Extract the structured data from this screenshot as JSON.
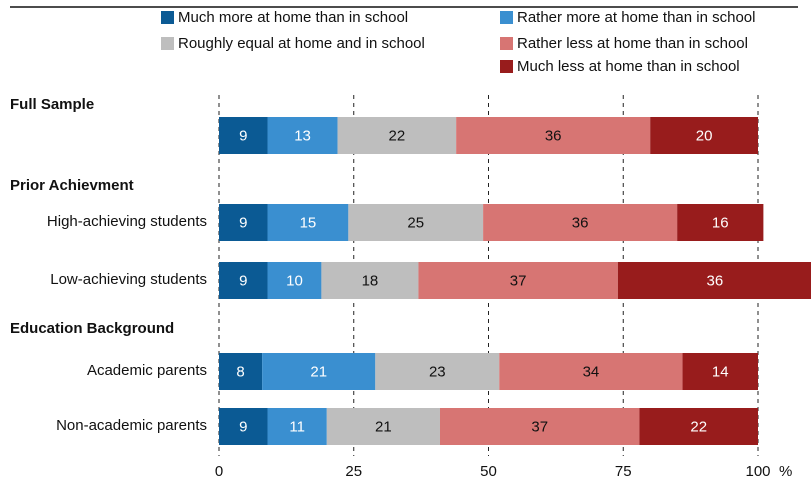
{
  "chart_data": {
    "type": "bar",
    "orientation": "horizontal",
    "stacked": true,
    "percent_unit": "%",
    "xlim": [
      0,
      100
    ],
    "xticks": [
      "0",
      "25",
      "50",
      "75",
      "100"
    ],
    "grid": "vertical dashed at ticks",
    "legend_position": "top",
    "legend": [
      "Much more at home than in school",
      "Rather more at home than in school",
      "Roughly equal at home and in school",
      "Rather less at home than in school",
      "Much less at home than in school"
    ],
    "colors": [
      "#0b5a94",
      "#3a8fd0",
      "#bebebe",
      "#d77573",
      "#981c1c"
    ],
    "label_colors": [
      "#ffffff",
      "#ffffff",
      "#111111",
      "#111111",
      "#ffffff"
    ],
    "groups": [
      {
        "header": "Full Sample",
        "rows": [
          {
            "label": "",
            "values": [
              9,
              13,
              22,
              36,
              20
            ]
          }
        ]
      },
      {
        "header": "Prior Achievment",
        "rows": [
          {
            "label": "High-achieving students",
            "values": [
              9,
              15,
              25,
              36,
              16
            ]
          },
          {
            "label": "Low-achieving students",
            "values": [
              9,
              10,
              18,
              37,
              36
            ]
          }
        ]
      },
      {
        "header": "Education Background",
        "rows": [
          {
            "label": "Academic parents",
            "values": [
              8,
              21,
              23,
              34,
              14
            ]
          },
          {
            "label": "Non-academic parents",
            "values": [
              9,
              11,
              21,
              37,
              22
            ]
          }
        ]
      }
    ]
  }
}
